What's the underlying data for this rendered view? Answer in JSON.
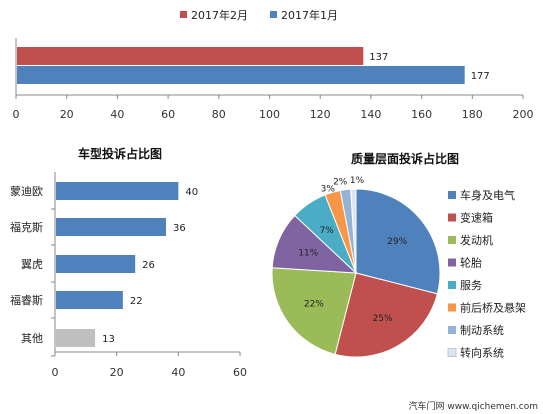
{
  "chart_data": [
    {
      "type": "bar",
      "orientation": "horizontal",
      "categories": [
        ""
      ],
      "series": [
        {
          "name": "2017年2月",
          "values": [
            137
          ],
          "color": "#c0504d"
        },
        {
          "name": "2017年1月",
          "values": [
            177
          ],
          "color": "#4f81bd"
        }
      ],
      "xlim": [
        0,
        200
      ],
      "xticks": [
        "0",
        "20",
        "40",
        "60",
        "80",
        "100",
        "120",
        "140",
        "160",
        "180",
        "200"
      ],
      "legend": "top"
    },
    {
      "type": "bar",
      "orientation": "horizontal",
      "title": "车型投诉占比图",
      "categories": [
        "蒙迪欧",
        "福克斯",
        "翼虎",
        "福睿斯",
        "其他"
      ],
      "values": [
        40,
        36,
        26,
        22,
        13
      ],
      "colors": [
        "#4f81bd",
        "#4f81bd",
        "#4f81bd",
        "#4f81bd",
        "#bfbfbf"
      ],
      "xlim": [
        0,
        60
      ],
      "xticks": [
        "0",
        "20",
        "40",
        "60"
      ]
    },
    {
      "type": "pie",
      "title": "质量层面投诉占比图",
      "labels": [
        "车身及电气",
        "变速箱",
        "发动机",
        "轮胎",
        "服务",
        "前后桥及悬架",
        "制动系统",
        "转向系统"
      ],
      "values": [
        29,
        25,
        22,
        11,
        7,
        3,
        2,
        1
      ],
      "value_labels": [
        "29%",
        "25%",
        "22%",
        "11%",
        "7%",
        "3%",
        "2%",
        "1%"
      ],
      "colors": [
        "#4f81bd",
        "#c0504d",
        "#9bbb59",
        "#8064a2",
        "#4bacc6",
        "#f79646",
        "#95b3d7",
        "#dbe5f1"
      ],
      "legend": "right"
    }
  ],
  "watermark": "汽车门网 www.qichemen.com"
}
